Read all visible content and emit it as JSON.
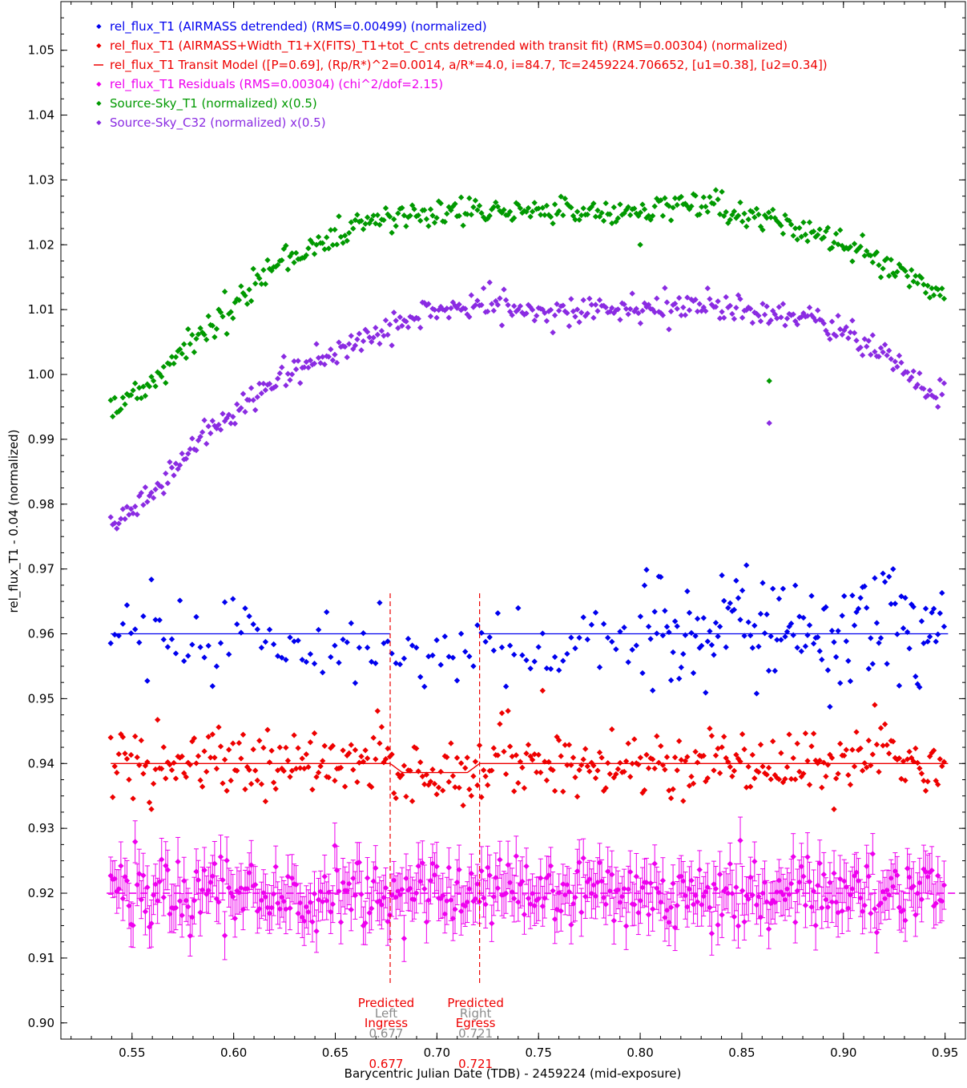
{
  "chart_data": {
    "type": "scatter",
    "xlabel": "Barycentric Julian Date (TDB) - 2459224 (mid-exposure)",
    "ylabel": "rel_flux_T1 - 0.04 (normalized)",
    "xlim": [
      0.515,
      0.96
    ],
    "ylim": [
      0.8975,
      1.0575
    ],
    "x_ticks": [
      0.55,
      0.6,
      0.65,
      0.7,
      0.75,
      0.8,
      0.85,
      0.9,
      0.95
    ],
    "x_tick_labels": [
      "0.55",
      "0.60",
      "0.65",
      "0.70",
      "0.75",
      "0.80",
      "0.85",
      "0.90",
      "0.95"
    ],
    "y_ticks": [
      0.9,
      0.91,
      0.92,
      0.93,
      0.94,
      0.95,
      0.96,
      0.97,
      0.98,
      0.99,
      1.0,
      1.01,
      1.02,
      1.03,
      1.04,
      1.05
    ],
    "y_tick_labels": [
      "0.90",
      "0.91",
      "0.92",
      "0.93",
      "0.94",
      "0.95",
      "0.96",
      "0.97",
      "0.98",
      "0.99",
      "1.00",
      "1.01",
      "1.02",
      "1.03",
      "1.04",
      "1.05"
    ],
    "grid": false,
    "legend_position": "top-left",
    "colors": {
      "blue": "#0000ee",
      "red": "#ee0000",
      "magenta": "#ee00ee",
      "green": "#009900",
      "purple": "#8a2be2",
      "gray": "#8c8c8c"
    },
    "x_range": [
      0.5395,
      0.9495
    ],
    "n_points": 410,
    "transit_model": {
      "ingress": 0.677,
      "egress": 0.721,
      "baseline": 0.94,
      "depth": 0.0014
    },
    "series": [
      {
        "name": "rel_flux_T1 (AIRMASS detrended) (RMS=0.00499) (normalized)",
        "kind": "scatter",
        "color": "blue",
        "approx": "flat 0.9595-0.9600 with scatter 0.951-0.979, larger scatter after x=0.80",
        "baseline": 0.96
      },
      {
        "name": "rel_flux_T1 (AIRMASS+Width_T1+X(FITS)_T1+tot_C_cnts detrended with transit fit) (RMS=0.00304) (normalized)",
        "kind": "scatter",
        "color": "red",
        "approx": "flat 0.9400 with scatter 0.930-0.948, slight dip during 0.677-0.721",
        "baseline": 0.94
      },
      {
        "name": "rel_flux_T1 Transit Model ([P=0.69], (Rp/R*)^2=0.0014, a/R*=4.0, i=84.7, Tc=2459224.706652, [u1=0.38], [u2=0.34])",
        "kind": "line",
        "color": "red"
      },
      {
        "name": "rel_flux_T1 Residuals (RMS=0.00304) (chi^2/dof=2.15)",
        "kind": "scatter_errorbars",
        "color": "magenta",
        "approx": "flat 0.9200 with scatter 0.907-0.928, error bars about +/-0.003",
        "baseline": 0.92
      },
      {
        "name": "Source-Sky_T1 (normalized) x(0.5)",
        "kind": "scatter",
        "color": "green",
        "approx": "rises 0.993 at 0.54 to 1.025 near 0.73-0.80, falls to 1.012 at 0.95",
        "points": [
          [
            0.54,
            0.9935
          ],
          [
            0.56,
            0.999
          ],
          [
            0.58,
            1.006
          ],
          [
            0.6,
            1.011
          ],
          [
            0.62,
            1.017
          ],
          [
            0.64,
            1.02
          ],
          [
            0.66,
            1.0225
          ],
          [
            0.68,
            1.0245
          ],
          [
            0.7,
            1.025
          ],
          [
            0.72,
            1.0255
          ],
          [
            0.74,
            1.025
          ],
          [
            0.76,
            1.0255
          ],
          [
            0.78,
            1.0255
          ],
          [
            0.8,
            1.025
          ],
          [
            0.82,
            1.026
          ],
          [
            0.84,
            1.0255
          ],
          [
            0.86,
            1.024
          ],
          [
            0.88,
            1.0225
          ],
          [
            0.9,
            1.02
          ],
          [
            0.92,
            1.017
          ],
          [
            0.93,
            1.015
          ],
          [
            0.95,
            1.012
          ]
        ],
        "outliers": [
          [
            0.8,
            1.02
          ],
          [
            0.8635,
            0.999
          ]
        ]
      },
      {
        "name": "Source-Sky_C32 (normalized) x(0.5)",
        "kind": "scatter",
        "color": "purple",
        "approx": "rises 0.976 at 0.54 to 1.011 near 0.72-0.80, falls to 0.996 at 0.95",
        "points": [
          [
            0.54,
            0.9765
          ],
          [
            0.56,
            0.981
          ],
          [
            0.58,
            0.989
          ],
          [
            0.6,
            0.994
          ],
          [
            0.62,
            0.999
          ],
          [
            0.64,
            1.002
          ],
          [
            0.66,
            1.005
          ],
          [
            0.68,
            1.0075
          ],
          [
            0.7,
            1.01
          ],
          [
            0.72,
            1.011
          ],
          [
            0.74,
            1.01
          ],
          [
            0.76,
            1.0095
          ],
          [
            0.78,
            1.01
          ],
          [
            0.8,
            1.01
          ],
          [
            0.82,
            1.0105
          ],
          [
            0.84,
            1.0105
          ],
          [
            0.86,
            1.0095
          ],
          [
            0.88,
            1.009
          ],
          [
            0.9,
            1.0065
          ],
          [
            0.92,
            1.003
          ],
          [
            0.94,
            0.998
          ],
          [
            0.95,
            0.996
          ]
        ],
        "outliers": [
          [
            0.8635,
            0.9925
          ]
        ]
      }
    ],
    "annotations": {
      "predicted_ingress": {
        "line1": "Predicted",
        "line2": "Ingress",
        "value": "0.677",
        "x": 0.677
      },
      "predicted_egress": {
        "line1": "Predicted",
        "line2": "Egress",
        "value": "0.721",
        "x": 0.721
      },
      "left": {
        "label": "Left",
        "value": "0.677"
      },
      "right": {
        "label": "Right",
        "value": "0.721"
      }
    }
  }
}
